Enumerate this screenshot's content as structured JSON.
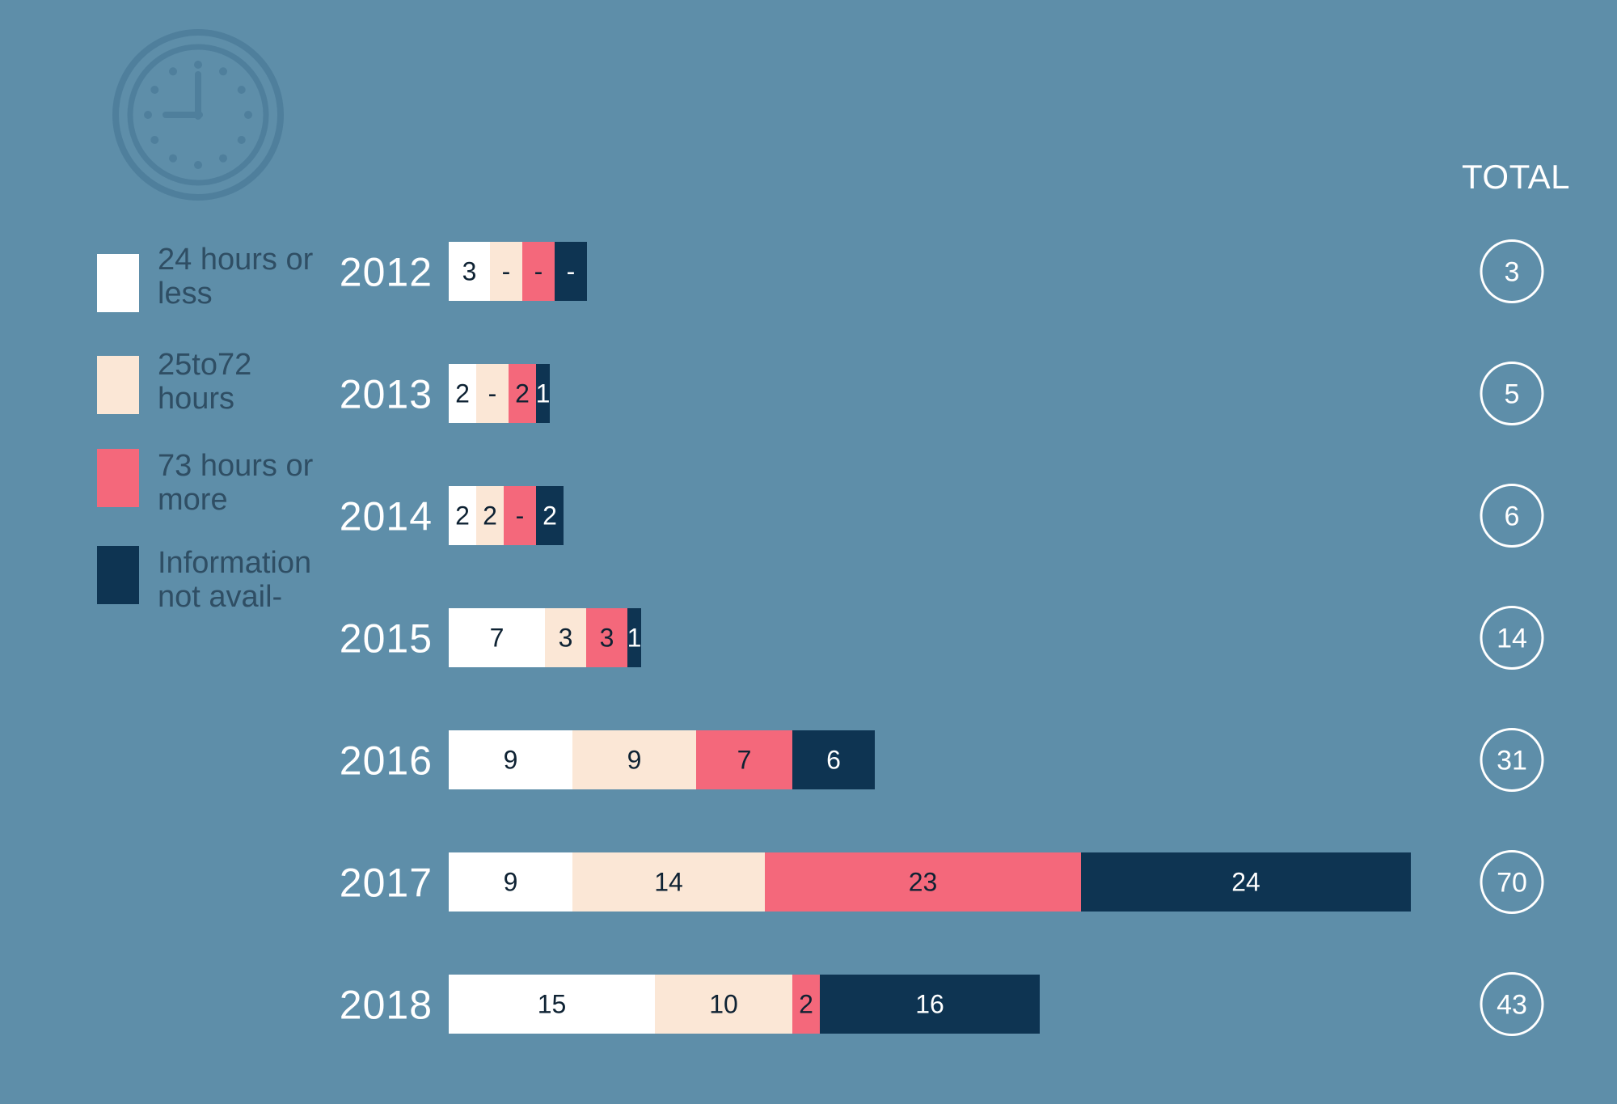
{
  "legend": [
    {
      "label": "24 hours or less",
      "color": "#ffffff"
    },
    {
      "label": "25to72 hours",
      "color": "#fbe7d6"
    },
    {
      "label": "73 hours or more",
      "color": "#f4687b"
    },
    {
      "label": "Information not avail-",
      "color": "#0e3452"
    }
  ],
  "total_header": "TOTAL",
  "icon": "clock-icon",
  "chart_data": {
    "type": "bar",
    "orientation": "horizontal",
    "stacked": true,
    "categories": [
      "2012",
      "2013",
      "2014",
      "2015",
      "2016",
      "2017",
      "2018"
    ],
    "series": [
      {
        "name": "24 hours or less",
        "color": "#ffffff",
        "text_color": "#0e2233",
        "values": [
          3,
          2,
          2,
          7,
          9,
          9,
          15
        ],
        "labels": [
          "3",
          "2",
          "2",
          "7",
          "9",
          "9",
          "15"
        ]
      },
      {
        "name": "25to72 hours",
        "color": "#fbe7d6",
        "text_color": "#0e2233",
        "values": [
          0,
          0,
          2,
          3,
          9,
          14,
          10
        ],
        "labels": [
          "-",
          "-",
          "2",
          "3",
          "9",
          "14",
          "10"
        ]
      },
      {
        "name": "73 hours or more",
        "color": "#f4687b",
        "text_color": "#0e2233",
        "values": [
          0,
          2,
          0,
          3,
          7,
          23,
          2
        ],
        "labels": [
          "-",
          "2",
          "-",
          "3",
          "7",
          "23",
          "2"
        ]
      },
      {
        "name": "Information not avail-",
        "color": "#0e3452",
        "text_color": "#ffffff",
        "values": [
          0,
          1,
          2,
          1,
          6,
          24,
          16
        ],
        "labels": [
          "-",
          "1",
          "2",
          "1",
          "6",
          "24",
          "16"
        ]
      }
    ],
    "totals": [
      3,
      5,
      6,
      14,
      31,
      70,
      43
    ],
    "grid": false,
    "legend_position": "left"
  }
}
